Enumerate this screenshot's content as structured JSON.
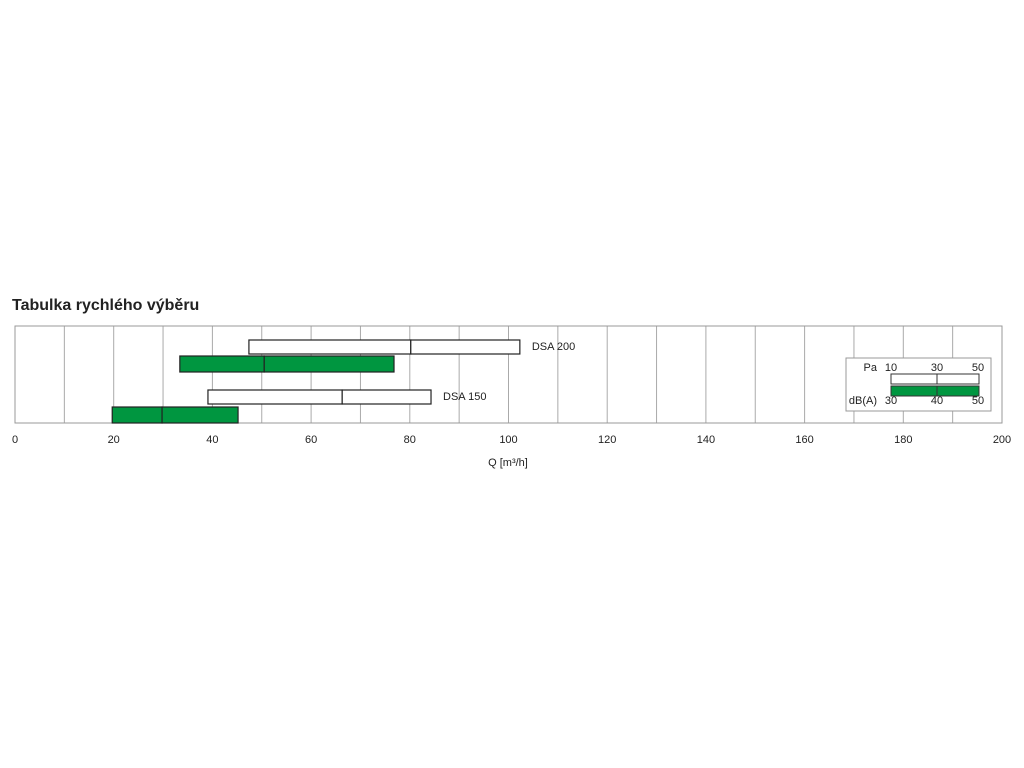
{
  "chart_data": {
    "type": "range_bar",
    "title": "Tabulka rychlého výběru",
    "x_label": "Q [m³/h]",
    "xlim": [
      0,
      200
    ],
    "xticks": [
      0,
      20,
      40,
      60,
      80,
      100,
      120,
      140,
      160,
      180,
      200
    ],
    "x_gridlines": [
      10,
      20,
      30,
      40,
      50,
      60,
      70,
      80,
      90,
      100,
      110,
      120,
      130,
      140,
      150,
      160,
      170,
      180,
      190
    ],
    "pressure_color": "#ffffff",
    "noise_color": "#009640",
    "series": [
      {
        "name": "DSA 200",
        "pressure_q": [
          47.4,
          80.2,
          102.3
        ],
        "noise_q": [
          33.4,
          50.5,
          76.8
        ]
      },
      {
        "name": "DSA 150",
        "pressure_q": [
          39.1,
          66.3,
          84.3
        ],
        "noise_q": [
          19.7,
          29.8,
          45.2
        ]
      }
    ],
    "legend": {
      "pressure_unit": "Pa",
      "pressure_levels": [
        10,
        30,
        50
      ],
      "noise_unit": "dB(A)",
      "noise_levels": [
        30,
        40,
        50
      ]
    }
  }
}
